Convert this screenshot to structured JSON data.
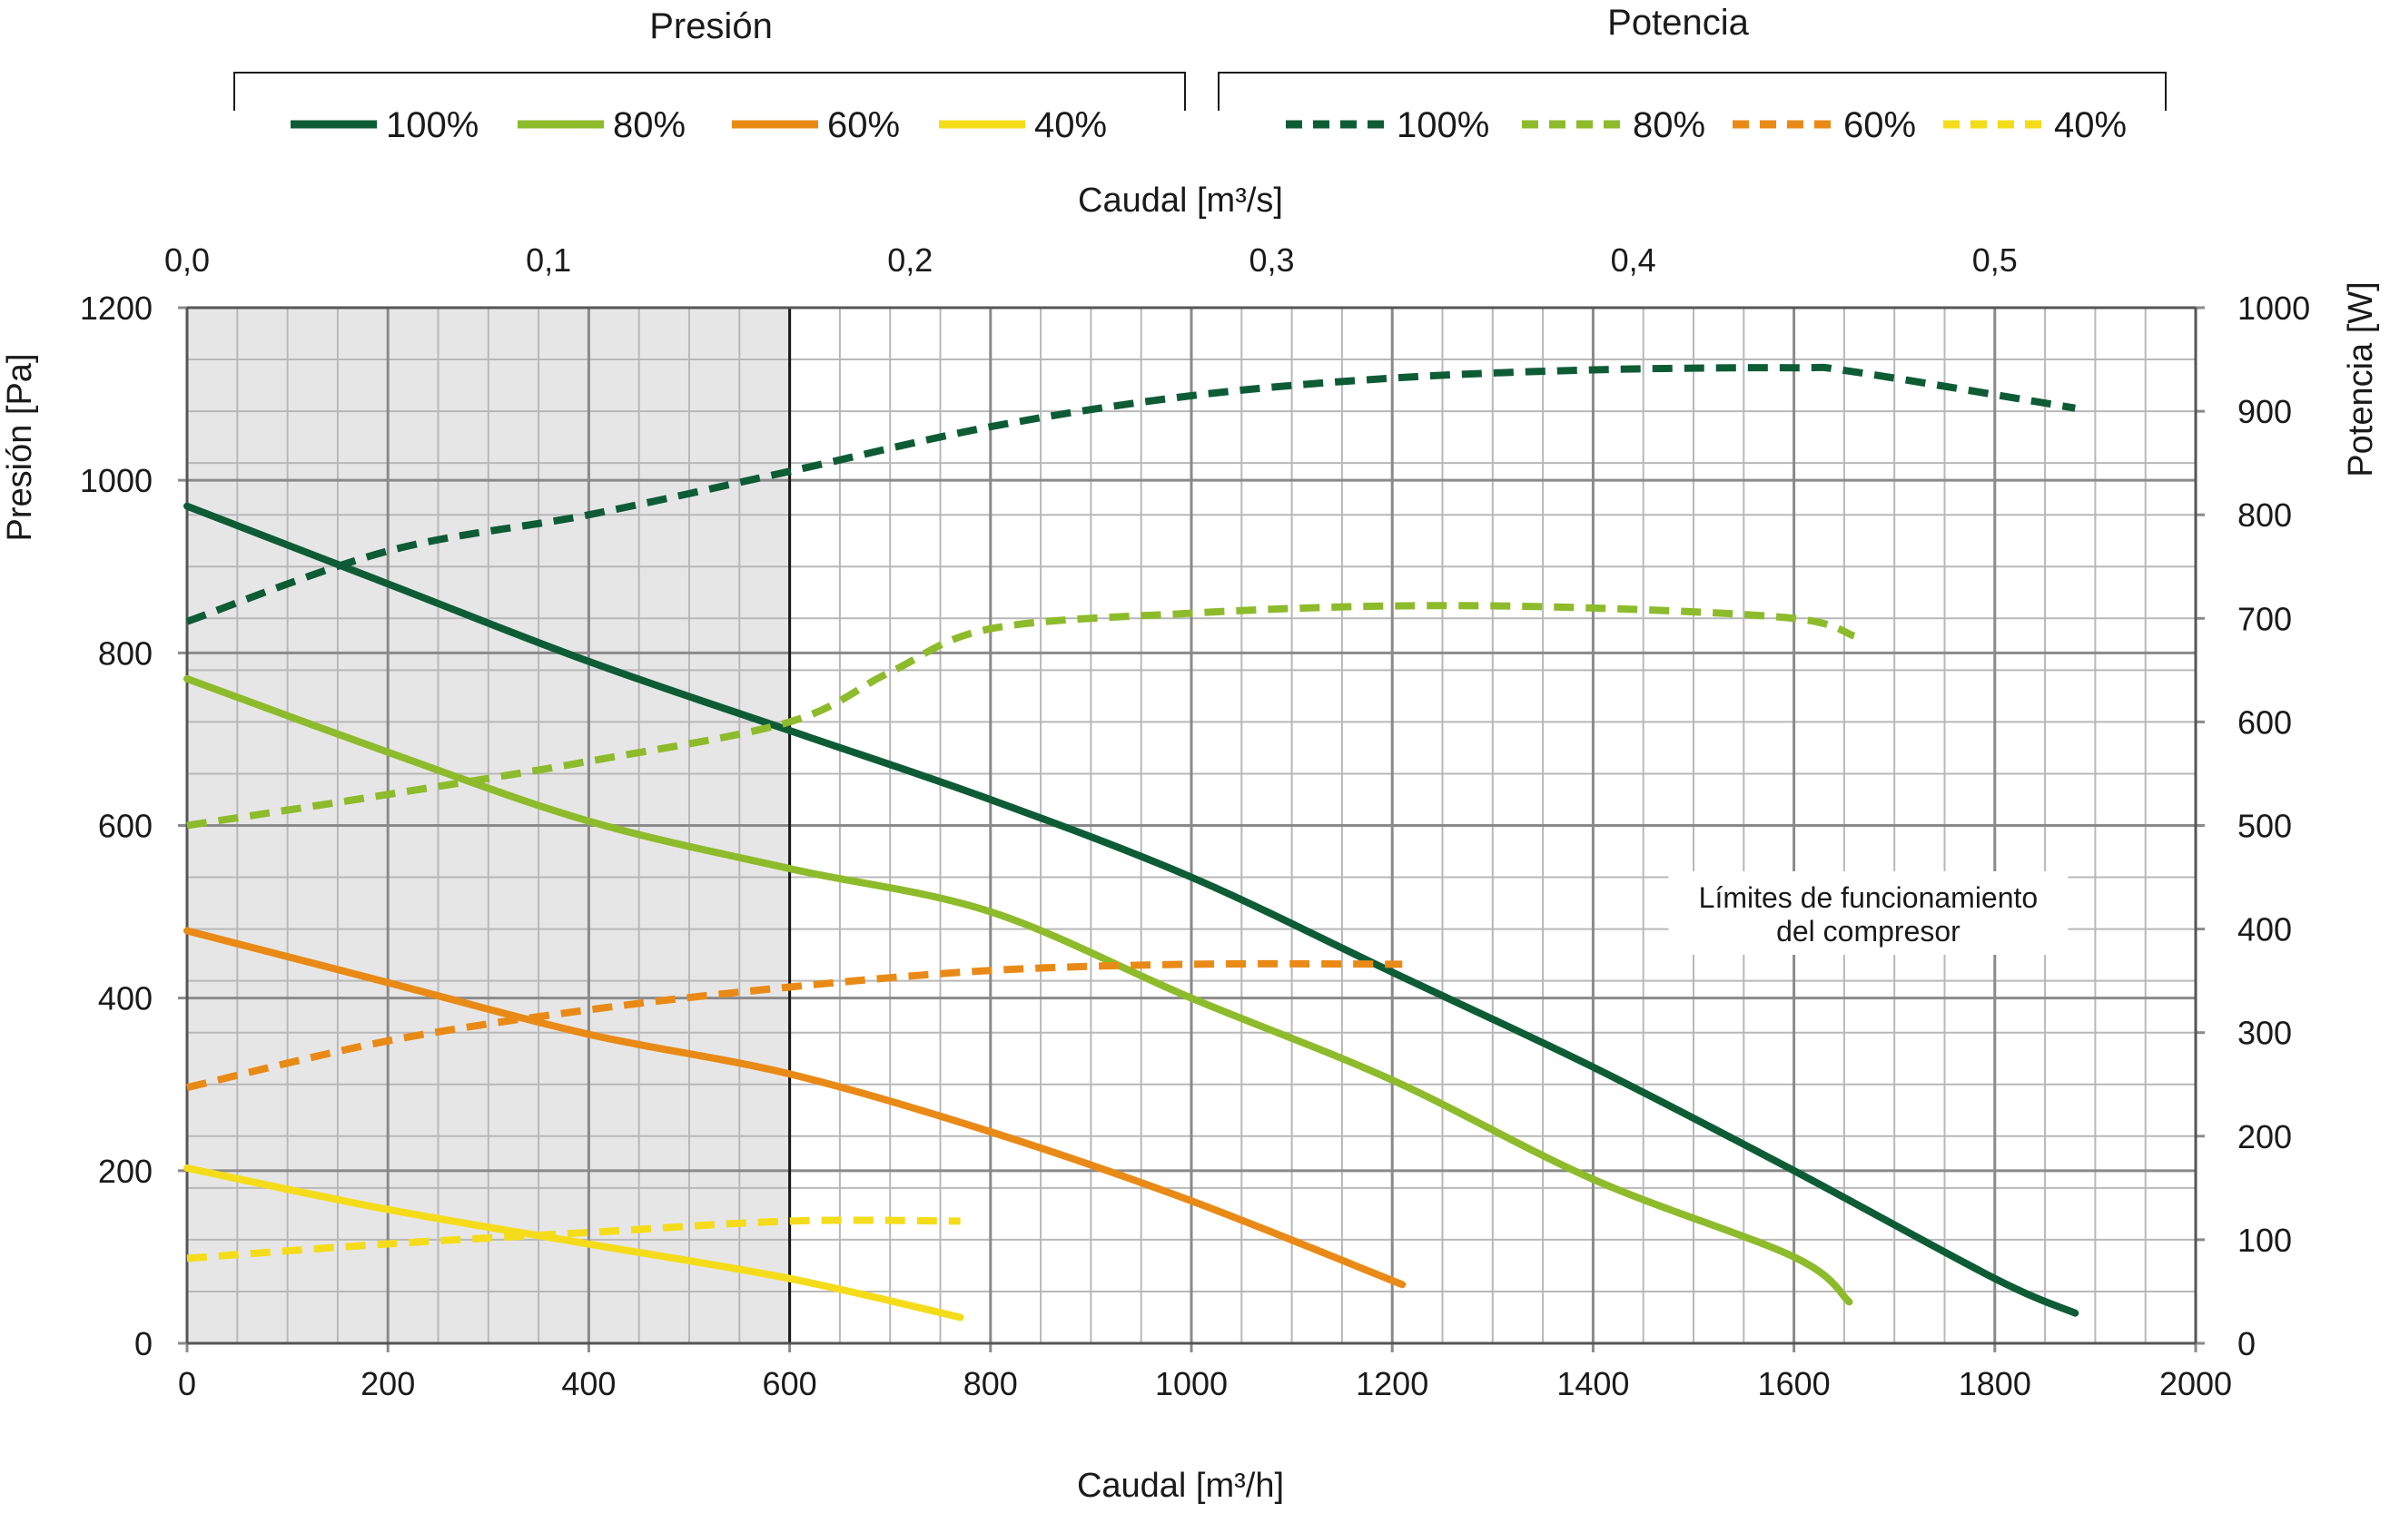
{
  "legend": {
    "pressure_title": "Presión",
    "power_title": "Potencia",
    "items": [
      "100%",
      "80%",
      "60%",
      "40%"
    ]
  },
  "colors": {
    "s100": "#0e5c36",
    "s80": "#8dbb2b",
    "s60": "#e98a17",
    "s40": "#f5dc1a",
    "grid_major": "#8a8a8a",
    "grid_minor": "#b8b8b8",
    "shade": "#e6e6e6",
    "limit_line": "#1a1a1a"
  },
  "chart_data": {
    "type": "line",
    "x_bottom": {
      "label": "Caudal [m³/h]",
      "range": [
        0,
        2000
      ],
      "ticks": [
        "0",
        "200",
        "400",
        "600",
        "800",
        "1000",
        "1200",
        "1400",
        "1600",
        "1800",
        "2000"
      ]
    },
    "x_top": {
      "label": "Caudal [m³/s]",
      "ticks": [
        "0,0",
        "0,1",
        "0,2",
        "0,3",
        "0,4",
        "0,5"
      ]
    },
    "y_left": {
      "label": "Presión [Pa]",
      "range": [
        0,
        1200
      ],
      "ticks": [
        "0",
        "200",
        "400",
        "600",
        "800",
        "1000",
        "1200"
      ]
    },
    "y_right": {
      "label": "Potencia [W]",
      "range": [
        0,
        1000
      ],
      "ticks": [
        "0",
        "100",
        "200",
        "300",
        "400",
        "500",
        "600",
        "700",
        "800",
        "900",
        "1000"
      ]
    },
    "grid": true,
    "shaded_region": {
      "x": [
        0,
        600
      ]
    },
    "annotation": [
      "Límites de funcionamiento",
      "del compresor"
    ],
    "pressure_series": [
      {
        "name": "100%",
        "x": [
          0,
          200,
          400,
          600,
          800,
          1000,
          1200,
          1400,
          1600,
          1800,
          1880
        ],
        "y": [
          970,
          880,
          790,
          710,
          630,
          540,
          430,
          320,
          200,
          75,
          35
        ]
      },
      {
        "name": "80%",
        "x": [
          0,
          200,
          400,
          600,
          800,
          1000,
          1200,
          1400,
          1600,
          1655
        ],
        "y": [
          770,
          685,
          605,
          550,
          500,
          400,
          305,
          190,
          100,
          48
        ]
      },
      {
        "name": "60%",
        "x": [
          0,
          200,
          400,
          600,
          800,
          1000,
          1210
        ],
        "y": [
          478,
          418,
          358,
          312,
          245,
          165,
          68
        ]
      },
      {
        "name": "40%",
        "x": [
          0,
          200,
          400,
          600,
          770
        ],
        "y": [
          203,
          155,
          115,
          75,
          30
        ]
      }
    ],
    "power_series": [
      {
        "name": "100%",
        "x": [
          0,
          200,
          400,
          600,
          800,
          1000,
          1200,
          1400,
          1600,
          1660,
          1880
        ],
        "y": [
          697,
          765,
          800,
          842,
          885,
          915,
          932,
          940,
          942,
          938,
          903
        ]
      },
      {
        "name": "80%",
        "x": [
          0,
          200,
          400,
          600,
          700,
          800,
          1000,
          1200,
          1400,
          1600,
          1660
        ],
        "y": [
          500,
          530,
          562,
          600,
          648,
          690,
          705,
          712,
          710,
          700,
          683
        ]
      },
      {
        "name": "60%",
        "x": [
          0,
          200,
          400,
          600,
          800,
          1000,
          1210
        ],
        "y": [
          247,
          292,
          322,
          344,
          360,
          366,
          366
        ]
      },
      {
        "name": "40%",
        "x": [
          0,
          200,
          400,
          600,
          770
        ],
        "y": [
          82,
          96,
          107,
          118,
          118
        ]
      }
    ]
  }
}
